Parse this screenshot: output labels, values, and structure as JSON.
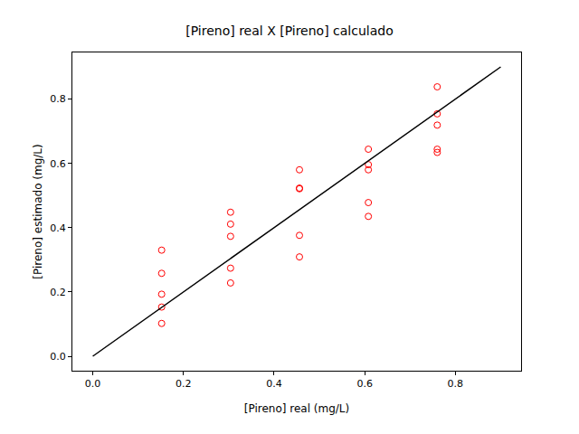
{
  "chart_data": {
    "type": "scatter",
    "title": "[Pireno] real X [Pireno] calculado",
    "x_label": "[Pireno] real (mg/L)",
    "y_label": "[Pireno] estimado (mg/L)",
    "xlim": [
      -0.045,
      0.945
    ],
    "ylim": [
      -0.045,
      0.945
    ],
    "xticks": [
      {
        "value": 0,
        "label": "0.0"
      },
      {
        "value": 0.2,
        "label": "0.2"
      },
      {
        "value": 0.4,
        "label": "0.4"
      },
      {
        "value": 0.6,
        "label": "0.6"
      },
      {
        "value": 0.8,
        "label": "0.8"
      }
    ],
    "yticks": [
      {
        "value": 0,
        "label": "0.0"
      },
      {
        "value": 0.2,
        "label": "0.2"
      },
      {
        "value": 0.4,
        "label": "0.4"
      },
      {
        "value": 0.6,
        "label": "0.6"
      },
      {
        "value": 0.8,
        "label": "0.8"
      }
    ],
    "grid": false,
    "series": [
      {
        "type": "scatter",
        "color": "#ff0000",
        "marker": "open circle",
        "x": [
          0.152,
          0.152,
          0.152,
          0.152,
          0.152,
          0.304,
          0.304,
          0.304,
          0.304,
          0.304,
          0.456,
          0.456,
          0.456,
          0.456,
          0.456,
          0.608,
          0.608,
          0.608,
          0.608,
          0.608,
          0.76,
          0.76,
          0.76,
          0.76,
          0.76
        ],
        "values": [
          0.33,
          0.258,
          0.193,
          0.153,
          0.102,
          0.448,
          0.411,
          0.373,
          0.274,
          0.228,
          0.58,
          0.523,
          0.521,
          0.376,
          0.309,
          0.644,
          0.596,
          0.58,
          0.478,
          0.435,
          0.838,
          0.754,
          0.719,
          0.644,
          0.634
        ]
      },
      {
        "type": "line",
        "color": "#000000",
        "line_style": "solid",
        "x": [
          0,
          0.9
        ],
        "values": [
          0,
          0.9
        ]
      }
    ]
  }
}
